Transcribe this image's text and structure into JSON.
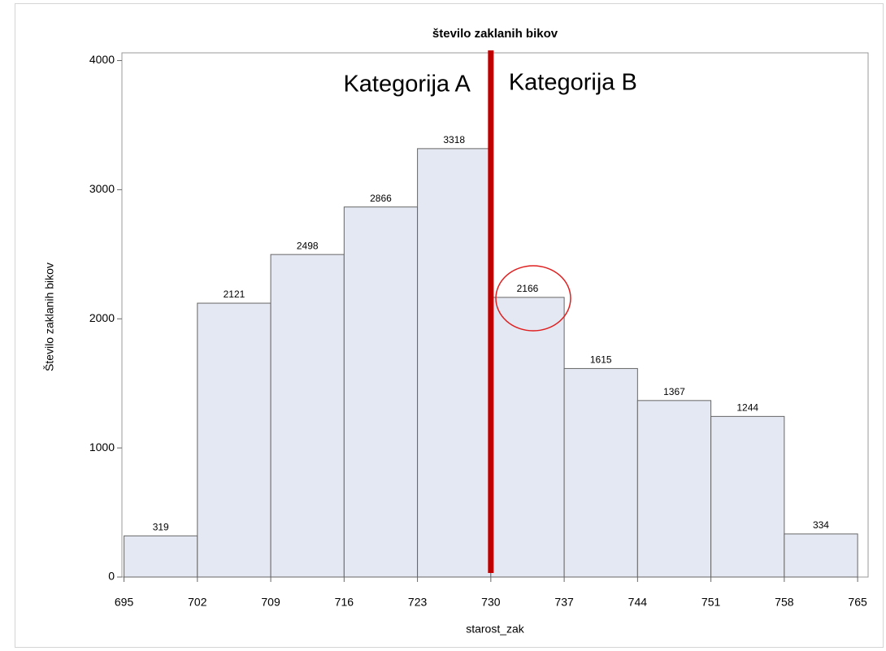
{
  "chart_data": {
    "type": "histogram",
    "title": "število zaklanih bikov",
    "x_label": "starost_zak",
    "y_label": "Število zaklanih bikov",
    "bins": [
      695,
      702,
      709,
      716,
      723,
      730,
      737,
      744,
      751,
      758,
      765
    ],
    "values": [
      319,
      2121,
      2498,
      2866,
      3318,
      2166,
      1615,
      1367,
      1244,
      334
    ],
    "color": "#e4e8f2",
    "edge_color": "#666666",
    "xlim": [
      694.8,
      766
    ],
    "xticks": [
      695,
      702,
      709,
      716,
      723,
      730,
      737,
      744,
      751,
      758,
      765
    ],
    "ylim": [
      0,
      4060
    ],
    "yticks": [
      0,
      1000,
      2000,
      3000,
      4000
    ],
    "annotations": {
      "divider": 730,
      "divider_color": "#c00000",
      "left_text": "Kategorija A",
      "right_text": "Kategorija B"
    }
  }
}
